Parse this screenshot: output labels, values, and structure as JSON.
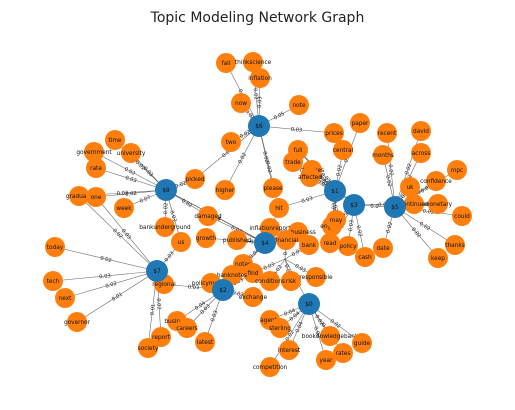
{
  "title": "Topic Modeling Network Graph",
  "colors": {
    "topic": "#1f77b4",
    "word": "#ff7f0e",
    "edge": "#3a3a3a"
  },
  "topic_nodes": [
    "$0",
    "$1",
    "$2",
    "$3",
    "$4",
    "$5",
    "$6",
    "$7",
    "$8"
  ],
  "word_nodes": [
    "fall",
    "thinkscience",
    "inflation",
    "now",
    "note",
    "two",
    "prices",
    "paper",
    "recent",
    "david",
    "full",
    "central",
    "months",
    "across",
    "mpc",
    "trade",
    "changes",
    "affected",
    "uk",
    "confidence",
    "government",
    "time",
    "university",
    "rate",
    "picked",
    "higher",
    "please",
    "could",
    "monetary",
    "continued",
    "graduate",
    "one",
    "week",
    "damaged",
    "hit",
    "england",
    "thanks",
    "bankunderground",
    "growth",
    "published",
    "inflationreport",
    "bbcbusiness",
    "may",
    "policy",
    "date",
    "keep",
    "us",
    "financial",
    "bank",
    "read",
    "cash",
    "today",
    "notes",
    "find",
    "risk",
    "responsible",
    "regional",
    "banknotes",
    "conditions",
    "tech",
    "policymakers",
    "exchange",
    "next",
    "business",
    "careers",
    "governor",
    "report",
    "latest",
    "agents",
    "sterling",
    "society",
    "bookdowledgebank",
    "guide",
    "interest",
    "rates",
    "year",
    "competition"
  ],
  "edges": [
    {
      "a": "$6",
      "b": "fall",
      "w": "0.02"
    },
    {
      "a": "$6",
      "b": "thinkscience",
      "w": "0.02"
    },
    {
      "a": "$6",
      "b": "inflation",
      "w": "0.03"
    },
    {
      "a": "$6",
      "b": "now",
      "w": "0.02"
    },
    {
      "a": "$6",
      "b": "note",
      "w": "0.05"
    },
    {
      "a": "$6",
      "b": "two",
      "w": "0.02"
    },
    {
      "a": "$6",
      "b": "prices",
      "w": "0.03"
    },
    {
      "a": "$6",
      "b": "higher",
      "w": "0.02"
    },
    {
      "a": "$6",
      "b": "please",
      "w": "0.02"
    },
    {
      "a": "$6",
      "b": "picked",
      "w": "0.02"
    },
    {
      "a": "$6",
      "b": "hit",
      "w": "0.02"
    },
    {
      "a": "$1",
      "b": "paper",
      "w": "0.02"
    },
    {
      "a": "$1",
      "b": "full",
      "w": "0.02"
    },
    {
      "a": "$1",
      "b": "central",
      "w": "0.02"
    },
    {
      "a": "$1",
      "b": "changes",
      "w": "0.03"
    },
    {
      "a": "$1",
      "b": "affected",
      "w": "0.02"
    },
    {
      "a": "$1",
      "b": "trade",
      "w": "0.02"
    },
    {
      "a": "$1",
      "b": "england",
      "w": "0.03"
    },
    {
      "a": "$1",
      "b": "may",
      "w": "0.02"
    },
    {
      "a": "$1",
      "b": "hit",
      "w": "0.03"
    },
    {
      "a": "$5",
      "b": "recent",
      "w": "0.02"
    },
    {
      "a": "$5",
      "b": "months",
      "w": "0.02"
    },
    {
      "a": "$5",
      "b": "david",
      "w": "0.02"
    },
    {
      "a": "$5",
      "b": "across",
      "w": "0.02"
    },
    {
      "a": "$5",
      "b": "mpc",
      "w": "0.02"
    },
    {
      "a": "$5",
      "b": "uk",
      "w": "0.02"
    },
    {
      "a": "$5",
      "b": "confidence",
      "w": "0.02"
    },
    {
      "a": "$5",
      "b": "monetary",
      "w": "0.02"
    },
    {
      "a": "$5",
      "b": "continued",
      "w": "0.03"
    },
    {
      "a": "$5",
      "b": "could",
      "w": "0.02"
    },
    {
      "a": "$5",
      "b": "thanks",
      "w": "0.02"
    },
    {
      "a": "$5",
      "b": "keep",
      "w": "0.02"
    },
    {
      "a": "$5",
      "b": "date",
      "w": "0.02"
    },
    {
      "a": "$5",
      "b": "$3",
      "w": "0.0"
    },
    {
      "a": "$3",
      "b": "policy",
      "w": "0.03"
    },
    {
      "a": "$3",
      "b": "cash",
      "w": "0.02"
    },
    {
      "a": "$3",
      "b": "england",
      "w": "0.02"
    },
    {
      "a": "$3",
      "b": "read",
      "w": "0.02"
    },
    {
      "a": "$3",
      "b": "changes",
      "w": "0.02"
    },
    {
      "a": "$3",
      "b": "full",
      "w": "0.03"
    },
    {
      "a": "$3",
      "b": "continued",
      "w": "0.02"
    },
    {
      "a": "$8",
      "b": "government",
      "w": "0.02"
    },
    {
      "a": "$8",
      "b": "time",
      "w": "0.02"
    },
    {
      "a": "$8",
      "b": "university",
      "w": "0.03"
    },
    {
      "a": "$8",
      "b": "rate",
      "w": "0.03"
    },
    {
      "a": "$8",
      "b": "graduate",
      "w": "0.02"
    },
    {
      "a": "$8",
      "b": "one",
      "w": "0.02"
    },
    {
      "a": "$8",
      "b": "week",
      "w": "0.07"
    },
    {
      "a": "$8",
      "b": "bankunderground",
      "w": "0.02"
    },
    {
      "a": "$8",
      "b": "damaged",
      "w": "0.02"
    },
    {
      "a": "$8",
      "b": "picked",
      "w": "0.02"
    },
    {
      "a": "$8",
      "b": "us",
      "w": "0.03"
    },
    {
      "a": "$8",
      "b": "$4",
      "w": "0.04"
    },
    {
      "a": "$7",
      "b": "today",
      "w": "0.02"
    },
    {
      "a": "$7",
      "b": "tech",
      "w": "0.03"
    },
    {
      "a": "$7",
      "b": "next",
      "w": "0.02"
    },
    {
      "a": "$7",
      "b": "governor",
      "w": "0.01"
    },
    {
      "a": "$7",
      "b": "society",
      "w": "0.01"
    },
    {
      "a": "$7",
      "b": "report",
      "w": "0.02"
    },
    {
      "a": "$7",
      "b": "graduate",
      "w": "0.02"
    },
    {
      "a": "$7",
      "b": "one",
      "w": "0.03"
    },
    {
      "a": "$7",
      "b": "us",
      "w": "0.03"
    },
    {
      "a": "$7",
      "b": "regional",
      "w": "0.03"
    },
    {
      "a": "$4",
      "b": "published",
      "w": "0.02"
    },
    {
      "a": "$4",
      "b": "inflationreport",
      "w": "0.02"
    },
    {
      "a": "$4",
      "b": "financial",
      "w": "0.02"
    },
    {
      "a": "$4",
      "b": "growth",
      "w": "0.02"
    },
    {
      "a": "$4",
      "b": "hit",
      "w": "0.03"
    },
    {
      "a": "$4",
      "b": "bbcbusiness",
      "w": "0.02"
    },
    {
      "a": "$4",
      "b": "notes",
      "w": "0.04"
    },
    {
      "a": "$4",
      "b": "damaged",
      "w": "0.04"
    },
    {
      "a": "$4",
      "b": "$8",
      "w": "0.06"
    },
    {
      "a": "$4",
      "b": "$2",
      "w": "0.02"
    },
    {
      "a": "$9",
      "b": "bank",
      "w": "0.03"
    },
    {
      "a": "$9",
      "b": "risk",
      "w": "0.02"
    },
    {
      "a": "$9",
      "b": "responsible",
      "w": "0.03"
    },
    {
      "a": "$9",
      "b": "conditions",
      "w": "0.02"
    },
    {
      "a": "$9",
      "b": "financial",
      "w": "0.04"
    },
    {
      "a": "$9",
      "b": "find",
      "w": "0.03"
    },
    {
      "a": "$9",
      "b": "$0",
      "w": "0.04"
    },
    {
      "a": "$2",
      "b": "banknotes",
      "w": "0.03"
    },
    {
      "a": "$2",
      "b": "policymakers",
      "w": "0.03"
    },
    {
      "a": "$2",
      "b": "exchange",
      "w": "0.03"
    },
    {
      "a": "$2",
      "b": "business",
      "w": "0.04"
    },
    {
      "a": "$2",
      "b": "careers",
      "w": "0.03"
    },
    {
      "a": "$2",
      "b": "latest",
      "w": "0.03"
    },
    {
      "a": "$2",
      "b": "regional",
      "w": "0.03"
    },
    {
      "a": "$2",
      "b": "find",
      "w": "0.03"
    },
    {
      "a": "$0",
      "b": "agents",
      "w": "0.04"
    },
    {
      "a": "$0",
      "b": "sterling",
      "w": "0.04"
    },
    {
      "a": "$0",
      "b": "interest",
      "w": "0.04"
    },
    {
      "a": "$0",
      "b": "bookdowledgebank",
      "w": "0.02"
    },
    {
      "a": "$0",
      "b": "guide",
      "w": "0.02"
    },
    {
      "a": "$0",
      "b": "rates",
      "w": "0.02"
    },
    {
      "a": "$0",
      "b": "year",
      "w": "0.02"
    },
    {
      "a": "$0",
      "b": "competition",
      "w": "0.02"
    }
  ]
}
